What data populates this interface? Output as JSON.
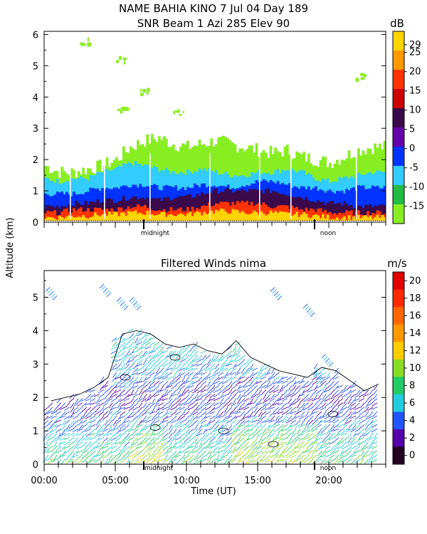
{
  "header": {
    "title_line1": "NAME BAHIA KINO    7 Jul 04 Day 189",
    "title_line2": "SNR Beam 1 Azi 285 Elev 90"
  },
  "shared": {
    "ylabel": "Altitude (km)",
    "xlabel": "Time (UT)",
    "midnight_label": "midnight",
    "noon_label": "noon"
  },
  "chart_data": [
    {
      "type": "heatmap",
      "title": "SNR Beam 1 Azi 285 Elev 90",
      "ylabel": "Altitude (km)",
      "ylim": [
        0,
        6
      ],
      "yticks": [
        "0",
        "1",
        "2",
        "3",
        "4",
        "5",
        "6"
      ],
      "colorbar": {
        "unit": "dB",
        "range": [
          -15,
          30
        ],
        "ticks": [
          "29",
          "25",
          "20",
          "15",
          "10",
          "5",
          "0",
          "-5",
          "-10",
          "-15"
        ],
        "colors": [
          "#ffd400",
          "#ff9900",
          "#ff3300",
          "#cc0000",
          "#3a0a4a",
          "#6600aa",
          "#0033ff",
          "#33ccff",
          "#22bb44",
          "#88ee22"
        ]
      },
      "x_markers": {
        "midnight_hour": 7.0,
        "noon_hour": 19.0
      },
      "layers": [
        {
          "snr": "-15",
          "top_km": [
            1.8,
            1.6,
            1.6,
            1.7,
            1.8,
            2.0,
            2.4,
            2.6,
            2.7,
            2.5,
            2.4,
            2.5,
            2.6,
            2.5,
            2.4,
            2.3,
            2.2,
            2.3,
            2.1,
            2.0,
            1.9,
            2.1,
            2.3,
            2.4
          ]
        },
        {
          "snr": "-5",
          "top_km": [
            1.4,
            1.3,
            1.4,
            1.4,
            1.6,
            1.7,
            1.9,
            1.8,
            1.7,
            1.6,
            1.6,
            1.7,
            1.6,
            1.5,
            1.5,
            1.6,
            1.6,
            1.7,
            1.6,
            1.4,
            1.3,
            1.4,
            1.5,
            1.6
          ]
        },
        {
          "snr": "0",
          "top_km": [
            0.9,
            0.9,
            0.9,
            1.0,
            1.1,
            1.1,
            1.2,
            1.2,
            1.1,
            1.1,
            1.1,
            1.2,
            1.2,
            1.1,
            1.2,
            1.3,
            1.3,
            1.2,
            1.1,
            1.1,
            1.0,
            1.0,
            1.1,
            1.1
          ]
        },
        {
          "snr": "10",
          "top_km": [
            0.5,
            0.5,
            0.6,
            0.6,
            0.7,
            0.7,
            0.8,
            0.8,
            0.7,
            0.8,
            0.8,
            0.9,
            1.0,
            1.0,
            1.0,
            1.0,
            1.0,
            0.9,
            0.8,
            0.7,
            0.6,
            0.6,
            0.5,
            0.5
          ]
        },
        {
          "snr": "20",
          "top_km": [
            0.3,
            0.3,
            0.4,
            0.4,
            0.4,
            0.4,
            0.5,
            0.5,
            0.4,
            0.4,
            0.4,
            0.5,
            0.6,
            0.6,
            0.6,
            0.6,
            0.5,
            0.5,
            0.4,
            0.4,
            0.3,
            0.3,
            0.3,
            0.3
          ]
        },
        {
          "snr": "29",
          "top_km": [
            0.15,
            0.15,
            0.2,
            0.2,
            0.25,
            0.25,
            0.3,
            0.3,
            0.25,
            0.25,
            0.25,
            0.3,
            0.35,
            0.35,
            0.3,
            0.3,
            0.3,
            0.25,
            0.25,
            0.2,
            0.15,
            0.15,
            0.15,
            0.15
          ]
        }
      ],
      "sparse_patches": [
        {
          "hour": 2.8,
          "alt_km": 5.8,
          "snr": "-15"
        },
        {
          "hour": 5.3,
          "alt_km": 5.2,
          "snr": "-15"
        },
        {
          "hour": 6.9,
          "alt_km": 4.2,
          "snr": "-15"
        },
        {
          "hour": 5.4,
          "alt_km": 3.6,
          "snr": "-15"
        },
        {
          "hour": 9.4,
          "alt_km": 3.5,
          "snr": "-15"
        },
        {
          "hour": 22.1,
          "alt_km": 4.7,
          "snr": "-15"
        }
      ]
    },
    {
      "type": "heatmap",
      "title": "Filtered Winds nima",
      "xlabel": "Time (UT)",
      "ylabel": "Altitude (km)",
      "ylim": [
        0,
        5.8
      ],
      "xlim": [
        0,
        24
      ],
      "yticks": [
        "0",
        "1",
        "2",
        "3",
        "4",
        "5"
      ],
      "xticks": [
        "00:00",
        "05:00",
        "10:00",
        "15:00",
        "20:00"
      ],
      "colorbar": {
        "unit": "m/s",
        "range": [
          0,
          22
        ],
        "ticks": [
          "20",
          "18",
          "16",
          "14",
          "12",
          "10",
          "8",
          "6",
          "4",
          "2",
          "0"
        ],
        "colors": [
          "#e00000",
          "#ff2a00",
          "#ff6600",
          "#ff9900",
          "#ffcc00",
          "#88dd22",
          "#22cc66",
          "#22ccdd",
          "#2255ff",
          "#5500aa",
          "#220022"
        ]
      },
      "x_markers": {
        "midnight_hour": 7.0,
        "noon_hour": 19.0
      },
      "wind_top_km": [
        1.9,
        2.0,
        2.1,
        2.3,
        2.6,
        3.9,
        4.0,
        3.9,
        3.6,
        3.5,
        3.6,
        3.4,
        3.3,
        3.7,
        3.2,
        3.0,
        2.8,
        2.7,
        2.6,
        2.9,
        2.8,
        2.5,
        2.2,
        2.4
      ],
      "speed_by_altitude": {
        "alt_km": [
          0.2,
          0.8,
          1.4,
          2.0,
          2.6,
          3.2,
          3.8
        ],
        "speed_ms": [
          8,
          6,
          4,
          3,
          4,
          6,
          6
        ]
      }
    }
  ]
}
